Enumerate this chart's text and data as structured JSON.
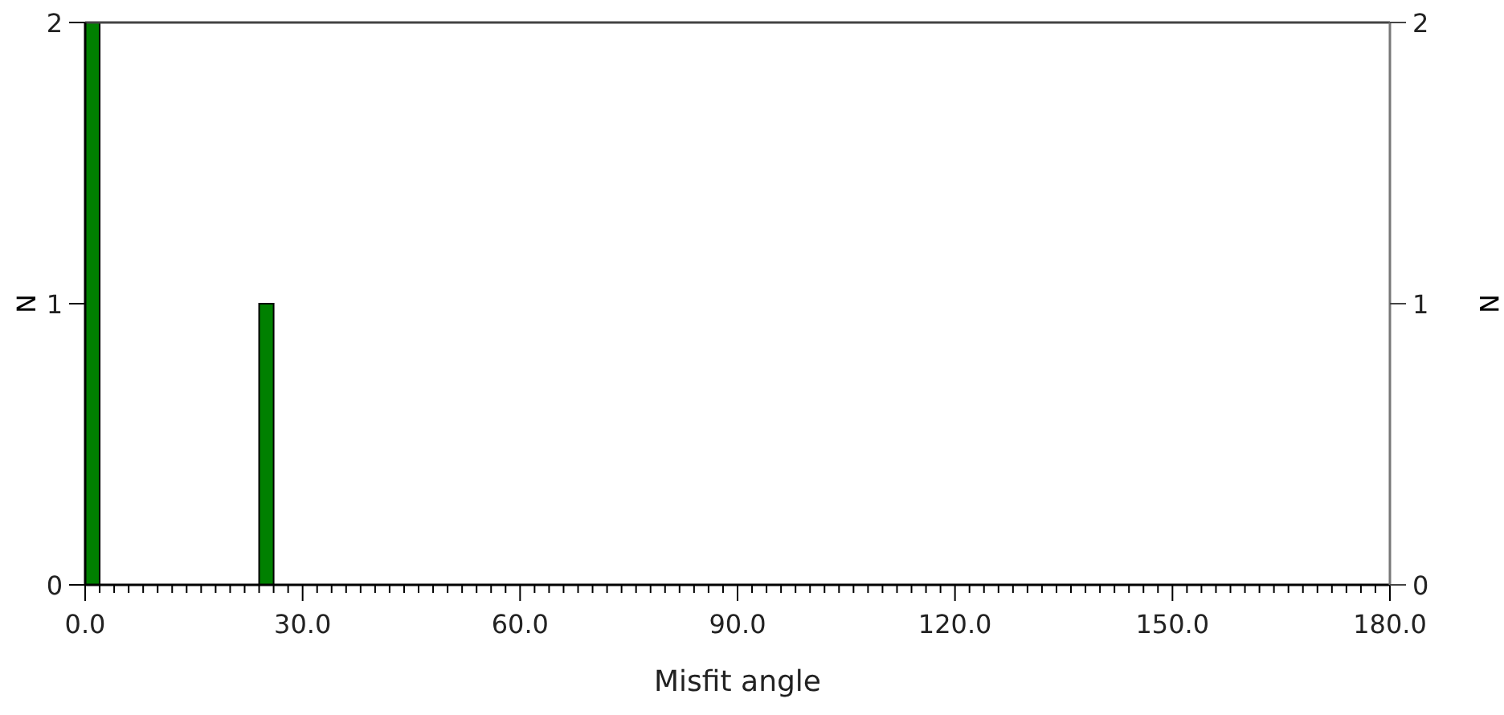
{
  "chart_data": {
    "type": "histogram",
    "xlabel": "Misfit angle",
    "ylabel": "N",
    "y2label": "N",
    "bins": [
      0,
      2,
      4,
      6,
      8,
      10,
      12,
      14,
      16,
      18,
      20,
      22,
      24,
      26
    ],
    "values": [
      2,
      0,
      0,
      0,
      0,
      0,
      0,
      0,
      0,
      0,
      0,
      0,
      1
    ],
    "color": "#008000",
    "xlim": [
      0,
      180
    ],
    "xticks": [
      {
        "value": 0,
        "label": "0.0"
      },
      {
        "value": 2,
        "label": null
      },
      {
        "value": 4,
        "label": null
      },
      {
        "value": 6,
        "label": null
      },
      {
        "value": 8,
        "label": null
      },
      {
        "value": 10,
        "label": null
      },
      {
        "value": 12,
        "label": null
      },
      {
        "value": 14,
        "label": null
      },
      {
        "value": 16,
        "label": null
      },
      {
        "value": 18,
        "label": null
      },
      {
        "value": 20,
        "label": null
      },
      {
        "value": 22,
        "label": null
      },
      {
        "value": 24,
        "label": null
      },
      {
        "value": 26,
        "label": null
      },
      {
        "value": 28,
        "label": null
      },
      {
        "value": 30,
        "label": "30.0"
      },
      {
        "value": 32,
        "label": null
      },
      {
        "value": 34,
        "label": null
      },
      {
        "value": 36,
        "label": null
      },
      {
        "value": 38,
        "label": null
      },
      {
        "value": 40,
        "label": null
      },
      {
        "value": 42,
        "label": null
      },
      {
        "value": 44,
        "label": null
      },
      {
        "value": 46,
        "label": null
      },
      {
        "value": 48,
        "label": null
      },
      {
        "value": 50,
        "label": null
      },
      {
        "value": 52,
        "label": null
      },
      {
        "value": 54,
        "label": null
      },
      {
        "value": 56,
        "label": null
      },
      {
        "value": 58,
        "label": null
      },
      {
        "value": 60,
        "label": "60.0"
      },
      {
        "value": 62,
        "label": null
      },
      {
        "value": 64,
        "label": null
      },
      {
        "value": 66,
        "label": null
      },
      {
        "value": 68,
        "label": null
      },
      {
        "value": 70,
        "label": null
      },
      {
        "value": 72,
        "label": null
      },
      {
        "value": 74,
        "label": null
      },
      {
        "value": 76,
        "label": null
      },
      {
        "value": 78,
        "label": null
      },
      {
        "value": 80,
        "label": null
      },
      {
        "value": 82,
        "label": null
      },
      {
        "value": 84,
        "label": null
      },
      {
        "value": 86,
        "label": null
      },
      {
        "value": 88,
        "label": null
      },
      {
        "value": 90,
        "label": "90.0"
      },
      {
        "value": 92,
        "label": null
      },
      {
        "value": 94,
        "label": null
      },
      {
        "value": 96,
        "label": null
      },
      {
        "value": 98,
        "label": null
      },
      {
        "value": 100,
        "label": null
      },
      {
        "value": 102,
        "label": null
      },
      {
        "value": 104,
        "label": null
      },
      {
        "value": 106,
        "label": null
      },
      {
        "value": 108,
        "label": null
      },
      {
        "value": 110,
        "label": null
      },
      {
        "value": 112,
        "label": null
      },
      {
        "value": 114,
        "label": null
      },
      {
        "value": 116,
        "label": null
      },
      {
        "value": 118,
        "label": null
      },
      {
        "value": 120,
        "label": "120.0"
      },
      {
        "value": 122,
        "label": null
      },
      {
        "value": 124,
        "label": null
      },
      {
        "value": 126,
        "label": null
      },
      {
        "value": 128,
        "label": null
      },
      {
        "value": 130,
        "label": null
      },
      {
        "value": 132,
        "label": null
      },
      {
        "value": 134,
        "label": null
      },
      {
        "value": 136,
        "label": null
      },
      {
        "value": 138,
        "label": null
      },
      {
        "value": 140,
        "label": null
      },
      {
        "value": 142,
        "label": null
      },
      {
        "value": 144,
        "label": null
      },
      {
        "value": 146,
        "label": null
      },
      {
        "value": 148,
        "label": null
      },
      {
        "value": 150,
        "label": "150.0"
      },
      {
        "value": 152,
        "label": null
      },
      {
        "value": 154,
        "label": null
      },
      {
        "value": 156,
        "label": null
      },
      {
        "value": 158,
        "label": null
      },
      {
        "value": 160,
        "label": null
      },
      {
        "value": 162,
        "label": null
      },
      {
        "value": 164,
        "label": null
      },
      {
        "value": 166,
        "label": null
      },
      {
        "value": 168,
        "label": null
      },
      {
        "value": 170,
        "label": null
      },
      {
        "value": 172,
        "label": null
      },
      {
        "value": 174,
        "label": null
      },
      {
        "value": 176,
        "label": null
      },
      {
        "value": 178,
        "label": null
      },
      {
        "value": 180,
        "label": "180.0"
      }
    ],
    "ylim": [
      0,
      2
    ],
    "yticks": [
      0,
      1,
      2
    ],
    "y2lim": [
      0,
      2
    ],
    "y2ticks": [
      0,
      1,
      2
    ]
  }
}
